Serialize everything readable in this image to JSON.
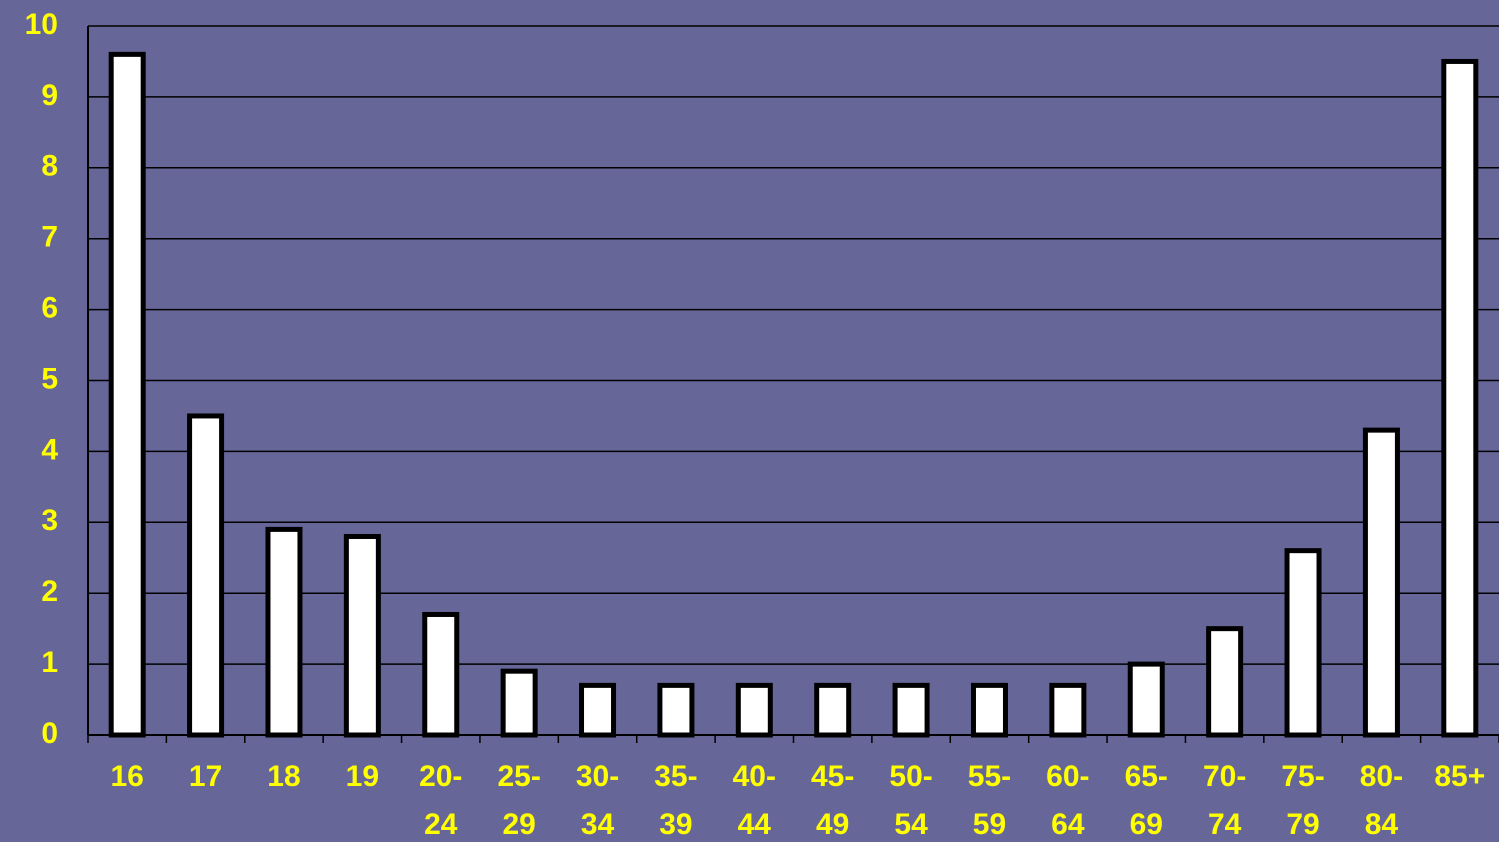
{
  "chart_data": {
    "type": "bar",
    "categories": [
      "16",
      "17",
      "18",
      "19",
      "20-24",
      "25-29",
      "30-34",
      "35-39",
      "40-44",
      "45-49",
      "50-54",
      "55-59",
      "60-64",
      "65-69",
      "70-74",
      "75-79",
      "80-84",
      "85+"
    ],
    "values": [
      9.6,
      4.5,
      2.9,
      2.8,
      1.7,
      0.9,
      0.7,
      0.7,
      0.7,
      0.7,
      0.7,
      0.7,
      0.7,
      1.0,
      1.5,
      2.6,
      4.3,
      9.5
    ],
    "color": "#ffffff",
    "ylim": [
      0,
      10
    ],
    "yticks": [
      0,
      1,
      2,
      3,
      4,
      5,
      6,
      7,
      8,
      9,
      10
    ],
    "grid": true
  }
}
